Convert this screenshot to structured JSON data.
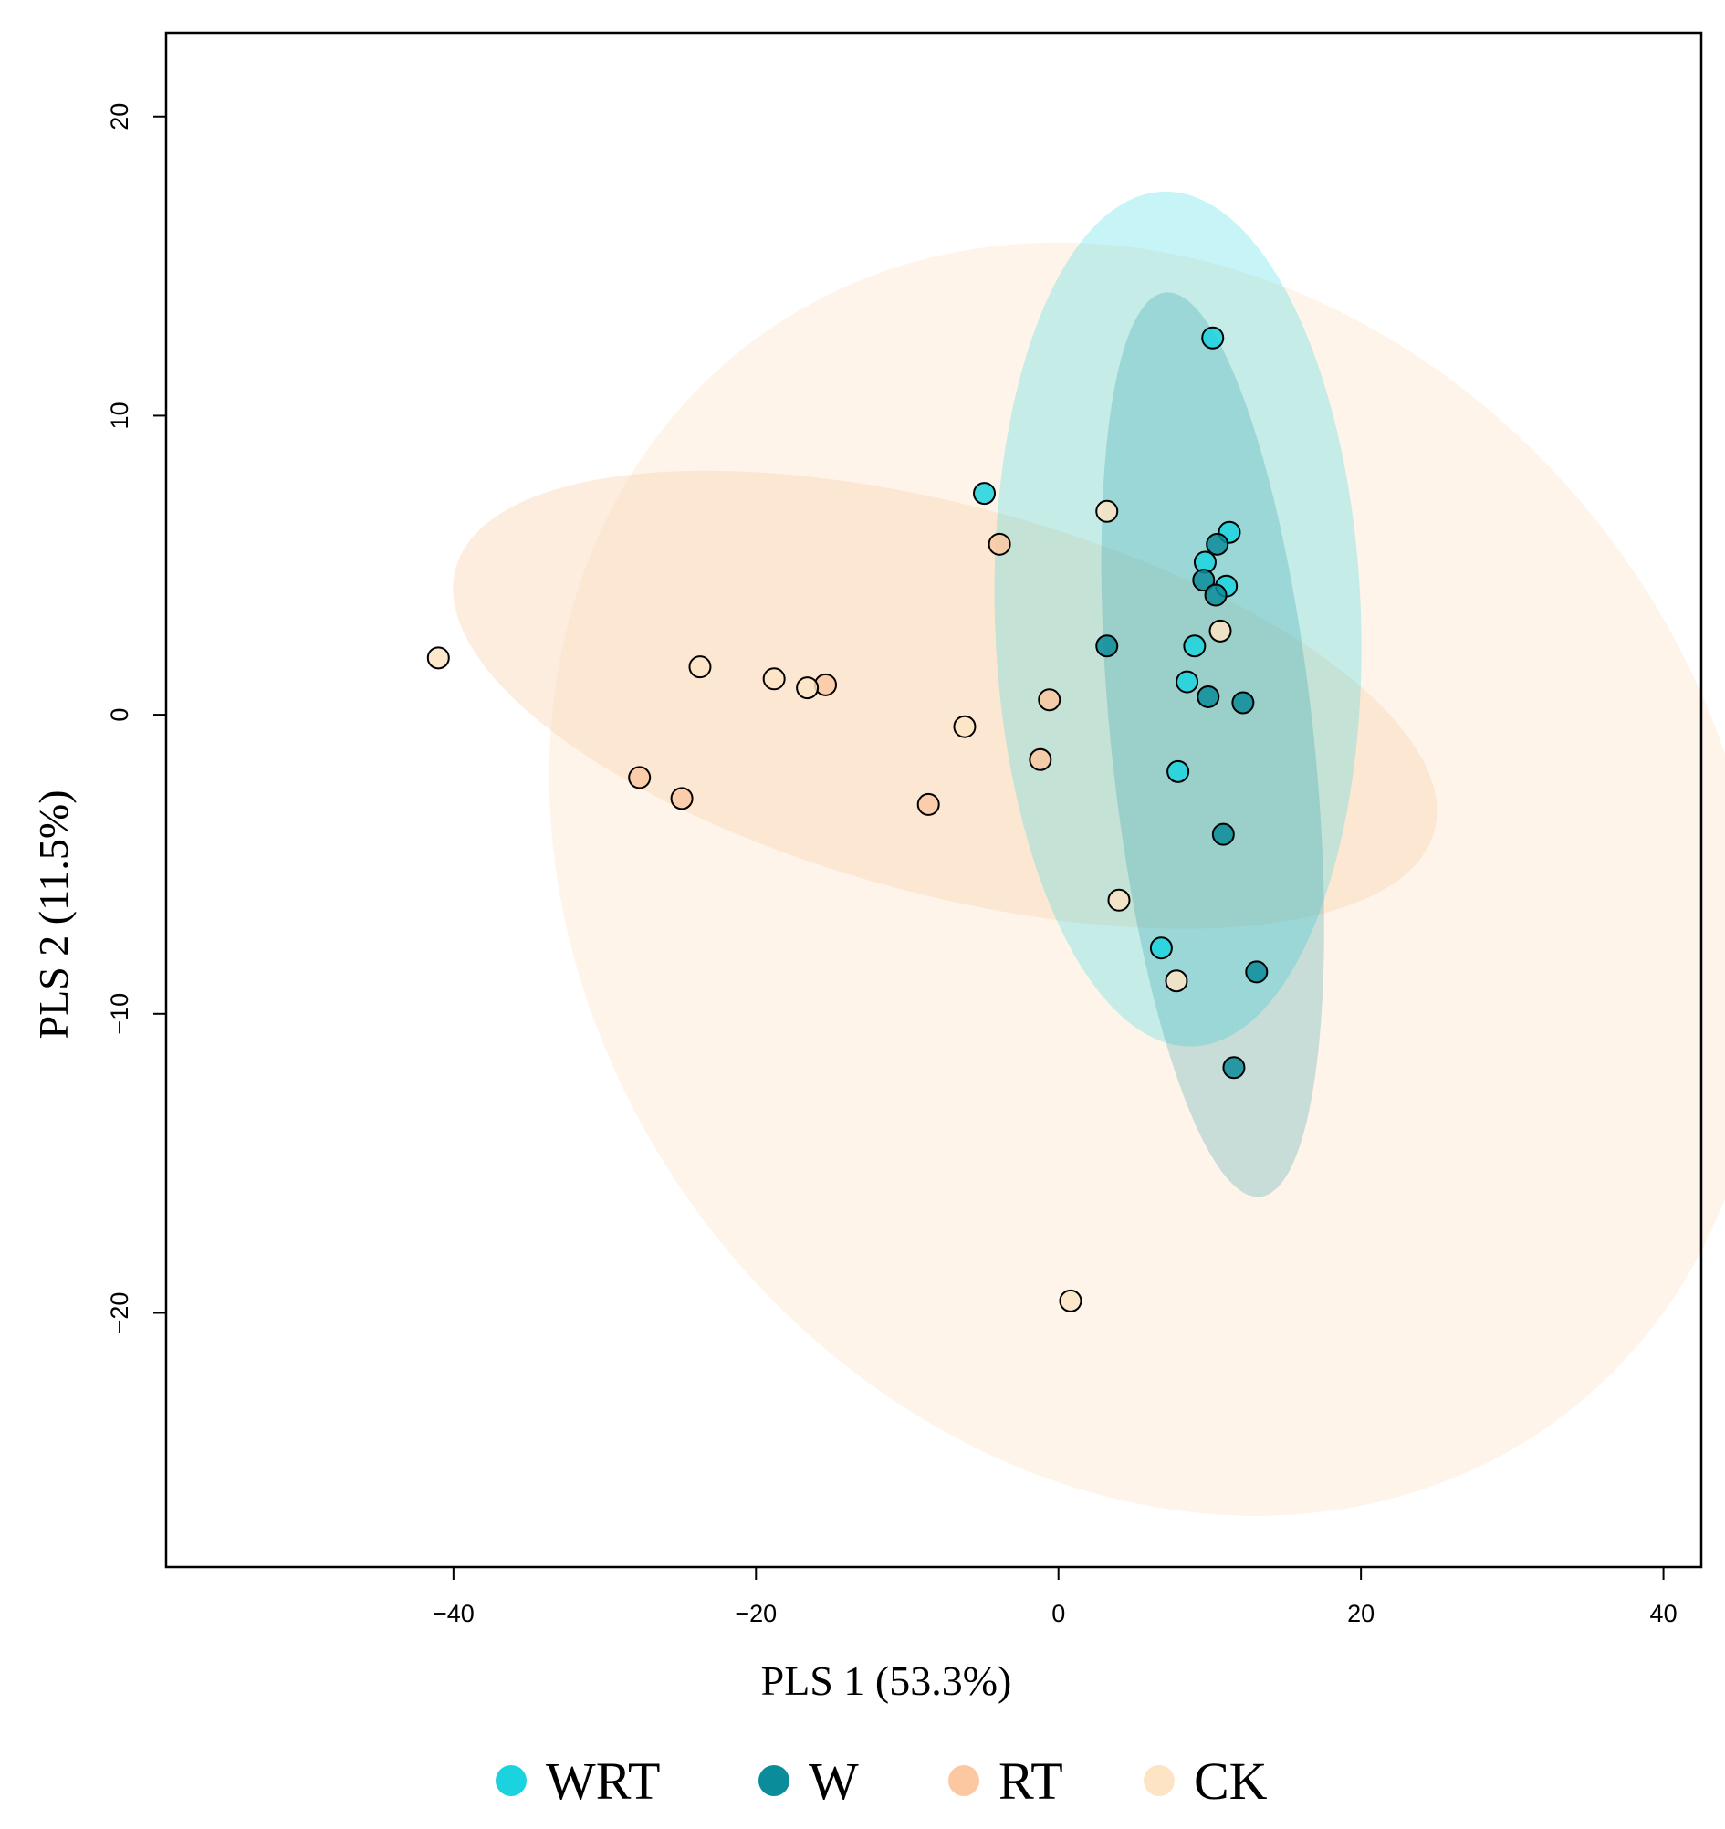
{
  "chart_data": {
    "type": "scatter",
    "title": "",
    "xlabel": "PLS 1 (53.3%)",
    "ylabel": "PLS 2 (11.5%)",
    "xlim": [
      -59,
      42.5
    ],
    "ylim": [
      -28.5,
      22.8
    ],
    "xticks": [
      -40,
      -20,
      0,
      20,
      40
    ],
    "xtick_labels": [
      "−40",
      "−20",
      "0",
      "20",
      "40"
    ],
    "yticks": [
      -20,
      -10,
      0,
      10,
      20
    ],
    "ytick_labels": [
      "−20",
      "−10",
      "0",
      "10",
      "20"
    ],
    "grid": false,
    "legend_position": "bottom",
    "series": [
      {
        "name": "WRT",
        "color": "#1bd3df",
        "points": [
          [
            10.2,
            12.6
          ],
          [
            -4.9,
            7.4
          ],
          [
            11.3,
            6.1
          ],
          [
            9.7,
            5.1
          ],
          [
            11.1,
            4.3
          ],
          [
            9.0,
            2.3
          ],
          [
            8.5,
            1.1
          ],
          [
            7.9,
            -1.9
          ],
          [
            6.8,
            -7.8
          ]
        ]
      },
      {
        "name": "W",
        "color": "#0a8c9a",
        "points": [
          [
            10.5,
            5.7
          ],
          [
            9.6,
            4.5
          ],
          [
            10.4,
            4.0
          ],
          [
            3.2,
            2.3
          ],
          [
            9.9,
            0.6
          ],
          [
            12.2,
            0.4
          ],
          [
            10.9,
            -4.0
          ],
          [
            13.1,
            -8.6
          ],
          [
            11.6,
            -11.8
          ]
        ]
      },
      {
        "name": "RT",
        "color": "#fbc8a2",
        "points": [
          [
            -3.9,
            5.7
          ],
          [
            -15.4,
            1.0
          ],
          [
            -0.6,
            0.5
          ],
          [
            -1.2,
            -1.5
          ],
          [
            -27.7,
            -2.1
          ],
          [
            -24.9,
            -2.8
          ],
          [
            -8.6,
            -3.0
          ]
        ]
      },
      {
        "name": "CK",
        "color": "#fde4c4",
        "points": [
          [
            -41.0,
            1.9
          ],
          [
            -23.7,
            1.6
          ],
          [
            -18.8,
            1.2
          ],
          [
            -16.6,
            0.9
          ],
          [
            -6.2,
            -0.4
          ],
          [
            3.2,
            6.8
          ],
          [
            10.7,
            2.8
          ],
          [
            4.0,
            -6.2
          ],
          [
            7.8,
            -8.9
          ],
          [
            0.8,
            -19.6
          ]
        ]
      }
    ],
    "ellipses": [
      {
        "group": "CK",
        "center": [
          6.5,
          -5.5
        ],
        "semi_axes": [
          37.5,
          22.5
        ],
        "rotation_deg": -37,
        "color": "#fde9d6",
        "opacity": 0.5
      },
      {
        "group": "RT",
        "center": [
          -7.5,
          0.5
        ],
        "semi_axes": [
          33.5,
          6.5
        ],
        "rotation_deg": 15,
        "color": "#fbd6b8",
        "opacity": 0.45
      },
      {
        "group": "WRT",
        "center": [
          7.9,
          3.2
        ],
        "semi_axes": [
          12.1,
          14.3
        ],
        "rotation_deg": -2,
        "color": "#1bd3df",
        "opacity": 0.25
      },
      {
        "group": "W",
        "center": [
          10.2,
          -1.0
        ],
        "semi_axes": [
          6.7,
          15.2
        ],
        "rotation_deg": -6,
        "color": "#0a8c9a",
        "opacity": 0.22
      }
    ]
  }
}
